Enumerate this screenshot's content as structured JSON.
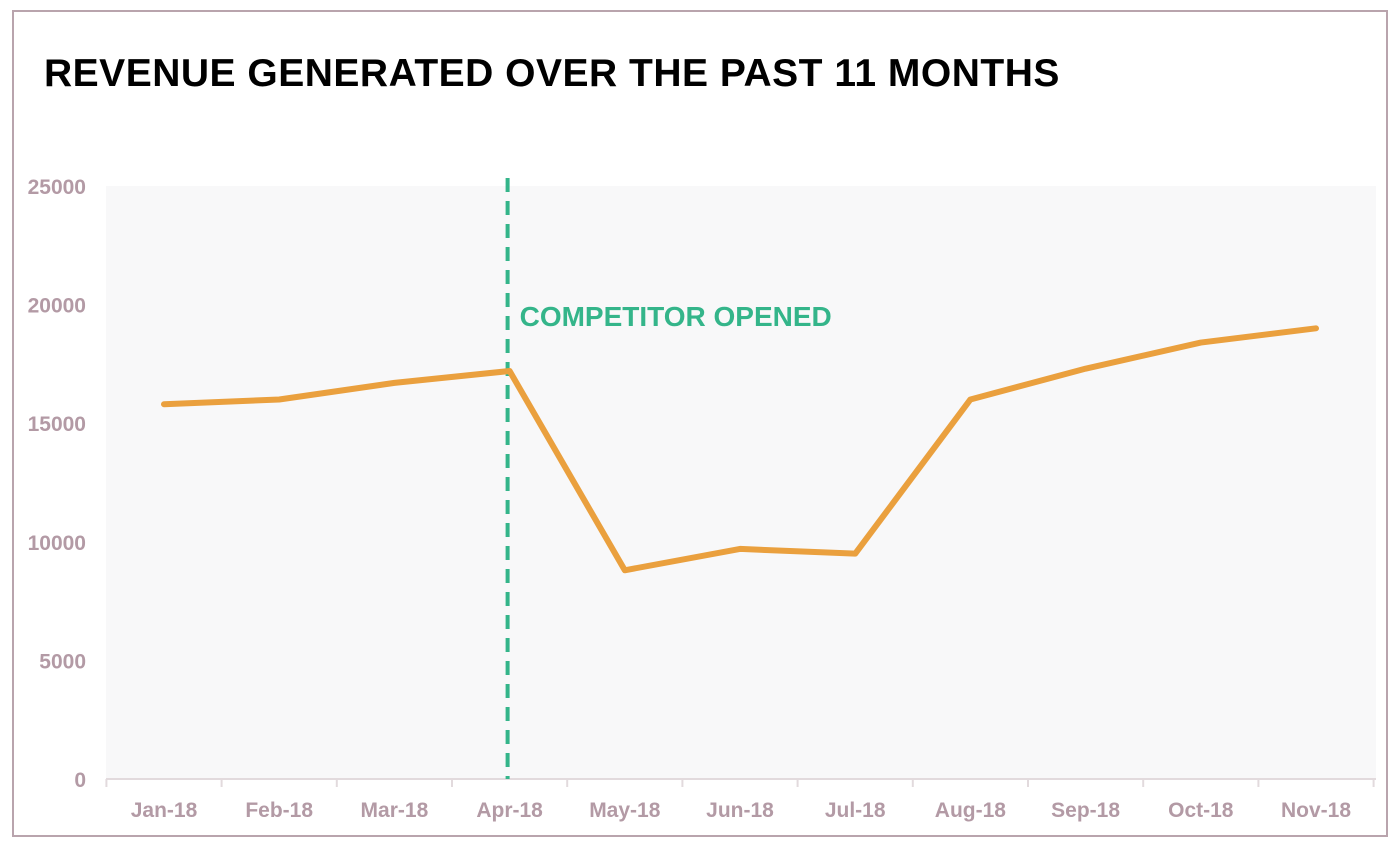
{
  "colors": {
    "line": "#eaa03e",
    "annotation": "#34b58a",
    "axis_text": "#b39aa5",
    "plot_bg": "#f8f8f9",
    "frame": "#b9a4ad"
  },
  "chart_data": {
    "type": "line",
    "title": "REVENUE GENERATED OVER THE PAST 11 MONTHS",
    "xlabel": "",
    "ylabel": "",
    "categories": [
      "Jan-18",
      "Feb-18",
      "Mar-18",
      "Apr-18",
      "May-18",
      "Jun-18",
      "Jul-18",
      "Aug-18",
      "Sep-18",
      "Oct-18",
      "Nov-18"
    ],
    "series": [
      {
        "values": [
          15800,
          16000,
          16700,
          17200,
          8800,
          9700,
          9500,
          16000,
          17300,
          18400,
          19000
        ]
      }
    ],
    "ylim": [
      0,
      25000
    ],
    "yticks": [
      0,
      5000,
      10000,
      15000,
      20000,
      25000
    ],
    "grid": false,
    "annotations": [
      {
        "text": "COMPETITOR OPENED",
        "at_category": "Apr-18",
        "style": "dashed vertical line"
      }
    ]
  }
}
